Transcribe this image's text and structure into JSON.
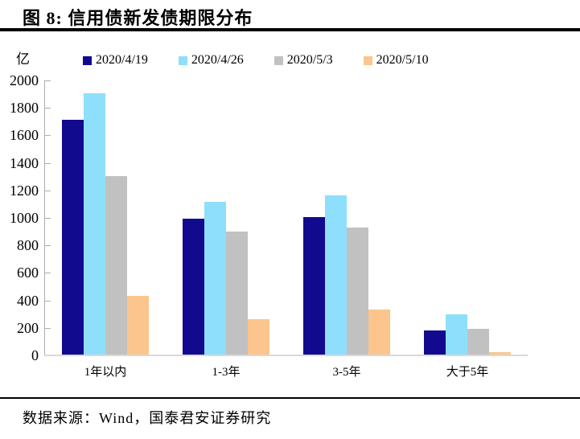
{
  "page": {
    "title": "图 8:  信用债新发债期限分布",
    "footer": "数据来源：Wind，国泰君安证券研究"
  },
  "chart_data": {
    "type": "bar",
    "title": "信用债新发债期限分布",
    "unit_label": "亿",
    "xlabel": "",
    "ylabel": "亿",
    "ylim": [
      0,
      2000
    ],
    "y_ticks": [
      0,
      200,
      400,
      600,
      800,
      1000,
      1200,
      1400,
      1600,
      1800,
      2000
    ],
    "grid": false,
    "legend_position": "top",
    "categories": [
      "1年以内",
      "1-3年",
      "3-5年",
      "大于5年"
    ],
    "series": [
      {
        "name": "2020/4/19",
        "color": "#110A8F",
        "values": [
          1710,
          990,
          1000,
          175
        ]
      },
      {
        "name": "2020/4/26",
        "color": "#8EDFFB",
        "values": [
          1900,
          1110,
          1160,
          290
        ]
      },
      {
        "name": "2020/5/3",
        "color": "#C1C1C1",
        "values": [
          1300,
          895,
          925,
          190
        ]
      },
      {
        "name": "2020/5/10",
        "color": "#FBC58D",
        "values": [
          425,
          260,
          330,
          20
        ]
      }
    ],
    "colors": {
      "axis_line": "#adadad",
      "baseline": "#d9d9d9",
      "rule": "#000000",
      "text": "#000000"
    }
  }
}
